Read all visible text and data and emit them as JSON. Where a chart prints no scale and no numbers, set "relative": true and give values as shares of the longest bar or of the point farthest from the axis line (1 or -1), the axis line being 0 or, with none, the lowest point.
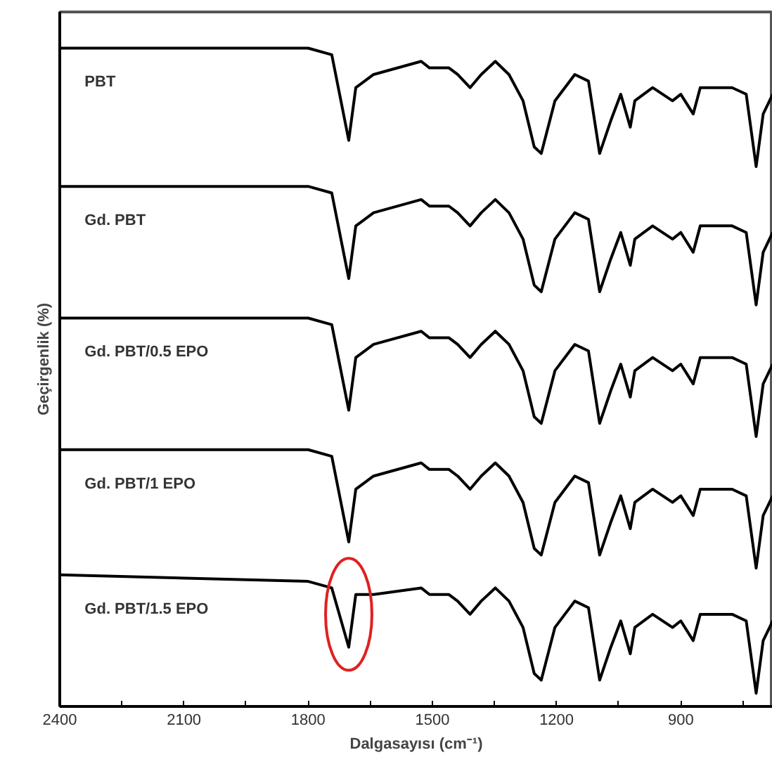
{
  "chart_data": {
    "type": "line",
    "relative": true,
    "xlabel": "Dalgasayısı (cm⁻¹)",
    "ylabel": "Geçirgenlik (%)",
    "xlim": [
      2400,
      678
    ],
    "xticks": [
      2400,
      {
        "value": 2250,
        "label": null
      },
      2100,
      {
        "value": 1950,
        "label": null
      },
      1800,
      {
        "value": 1650,
        "label": null
      },
      1500,
      {
        "value": 1350,
        "label": null
      },
      1200,
      {
        "value": 1050,
        "label": null
      },
      900,
      {
        "value": 750,
        "label": null
      }
    ],
    "tick_labels": "x",
    "grid": false,
    "marker": "none",
    "line_style": "solid",
    "x": [
      2400,
      1800,
      1743,
      1702,
      1685,
      1642,
      1527,
      1507,
      1460,
      1439,
      1409,
      1382,
      1348,
      1315,
      1281,
      1254,
      1237,
      1204,
      1156,
      1123,
      1096,
      1069,
      1045,
      1022,
      1011,
      968,
      920,
      900,
      870,
      853,
      776,
      742,
      718,
      701,
      678
    ],
    "series": [
      {
        "name": "PBT",
        "color": "#000000",
        "values": [
          1.0,
          1.0,
          0.99,
          0.86,
          0.94,
          0.96,
          0.98,
          0.97,
          0.97,
          0.96,
          0.94,
          0.96,
          0.98,
          0.96,
          0.92,
          0.85,
          0.84,
          0.92,
          0.96,
          0.95,
          0.84,
          0.89,
          0.93,
          0.88,
          0.92,
          0.94,
          0.92,
          0.93,
          0.9,
          0.94,
          0.94,
          0.93,
          0.82,
          0.9,
          0.93
        ]
      },
      {
        "name": "Gd. PBT",
        "color": "#000000",
        "values": [
          0.79,
          0.79,
          0.78,
          0.65,
          0.73,
          0.75,
          0.77,
          0.76,
          0.76,
          0.75,
          0.73,
          0.75,
          0.77,
          0.75,
          0.71,
          0.64,
          0.63,
          0.71,
          0.75,
          0.74,
          0.63,
          0.68,
          0.72,
          0.67,
          0.71,
          0.73,
          0.71,
          0.72,
          0.69,
          0.73,
          0.73,
          0.72,
          0.61,
          0.69,
          0.72
        ]
      },
      {
        "name": "Gd. PBT/0.5 EPO",
        "color": "#000000",
        "values": [
          0.59,
          0.59,
          0.58,
          0.45,
          0.53,
          0.55,
          0.57,
          0.56,
          0.56,
          0.55,
          0.53,
          0.55,
          0.57,
          0.55,
          0.51,
          0.44,
          0.43,
          0.51,
          0.55,
          0.54,
          0.43,
          0.48,
          0.52,
          0.47,
          0.51,
          0.53,
          0.51,
          0.52,
          0.49,
          0.53,
          0.53,
          0.52,
          0.41,
          0.49,
          0.52
        ]
      },
      {
        "name": "Gd. PBT/1 EPO",
        "color": "#000000",
        "values": [
          0.39,
          0.39,
          0.38,
          0.25,
          0.33,
          0.35,
          0.37,
          0.36,
          0.36,
          0.35,
          0.33,
          0.35,
          0.37,
          0.35,
          0.31,
          0.24,
          0.23,
          0.31,
          0.35,
          0.34,
          0.23,
          0.28,
          0.32,
          0.27,
          0.31,
          0.33,
          0.31,
          0.32,
          0.29,
          0.33,
          0.33,
          0.32,
          0.21,
          0.29,
          0.32
        ]
      },
      {
        "name": "Gd. PBT/1.5 EPO",
        "color": "#000000",
        "values": [
          0.2,
          0.19,
          0.18,
          0.09,
          0.17,
          0.17,
          0.18,
          0.17,
          0.17,
          0.16,
          0.14,
          0.16,
          0.18,
          0.16,
          0.12,
          0.05,
          0.04,
          0.12,
          0.16,
          0.15,
          0.04,
          0.09,
          0.13,
          0.08,
          0.12,
          0.14,
          0.12,
          0.13,
          0.1,
          0.14,
          0.14,
          0.13,
          0.02,
          0.1,
          0.13
        ]
      }
    ]
  }
}
